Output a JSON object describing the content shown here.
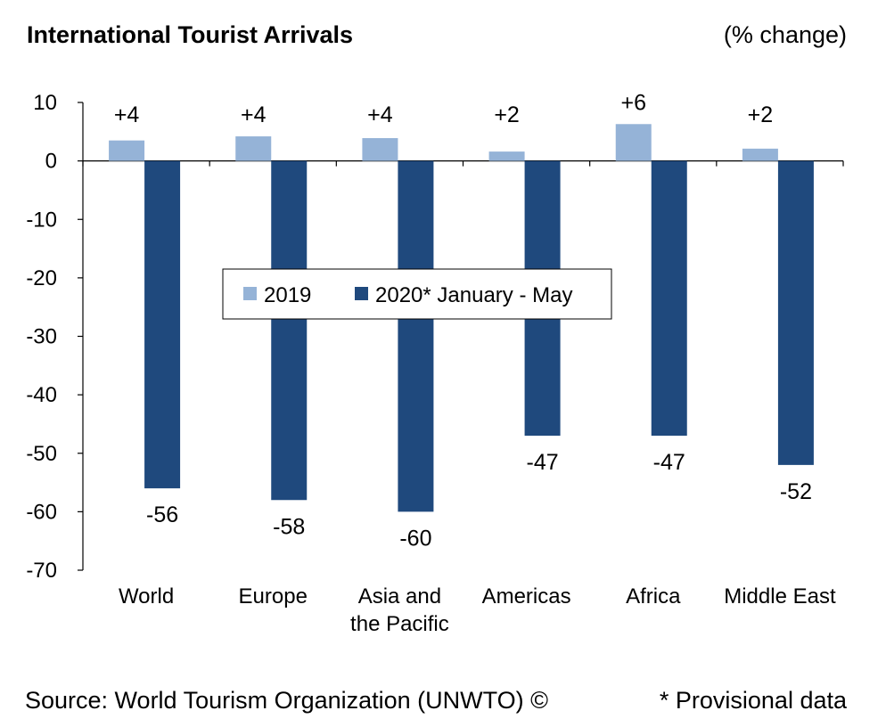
{
  "title": "International Tourist Arrivals",
  "unit_label": "(% change)",
  "source": "Source: World Tourism Organization (UNWTO) ©",
  "provisional_note": "* Provisional data",
  "chart_data": {
    "type": "bar",
    "title": "International Tourist Arrivals",
    "ylabel": "(% change)",
    "xlabel": "",
    "ylim": [
      -70,
      10
    ],
    "yticks": [
      10,
      0,
      -10,
      -20,
      -30,
      -40,
      -50,
      -60,
      -70
    ],
    "categories": [
      [
        "World"
      ],
      [
        "Europe"
      ],
      [
        "Asia and",
        "the Pacific"
      ],
      [
        "Americas"
      ],
      [
        "Africa"
      ],
      [
        "Middle East"
      ]
    ],
    "series": [
      {
        "name": "2019",
        "color": "#95b3d7",
        "values": [
          3.5,
          4.2,
          3.9,
          1.6,
          6.3,
          2.1
        ],
        "labels": [
          "+4",
          "+4",
          "+4",
          "+2",
          "+6",
          "+2"
        ]
      },
      {
        "name": "2020* January - May",
        "color": "#1f497d",
        "values": [
          -56,
          -58,
          -60,
          -47,
          -47,
          -52
        ],
        "labels": [
          "-56",
          "-58",
          "-60",
          "-47",
          "-47",
          "-52"
        ]
      }
    ],
    "legend_position": "center",
    "grid": false
  }
}
